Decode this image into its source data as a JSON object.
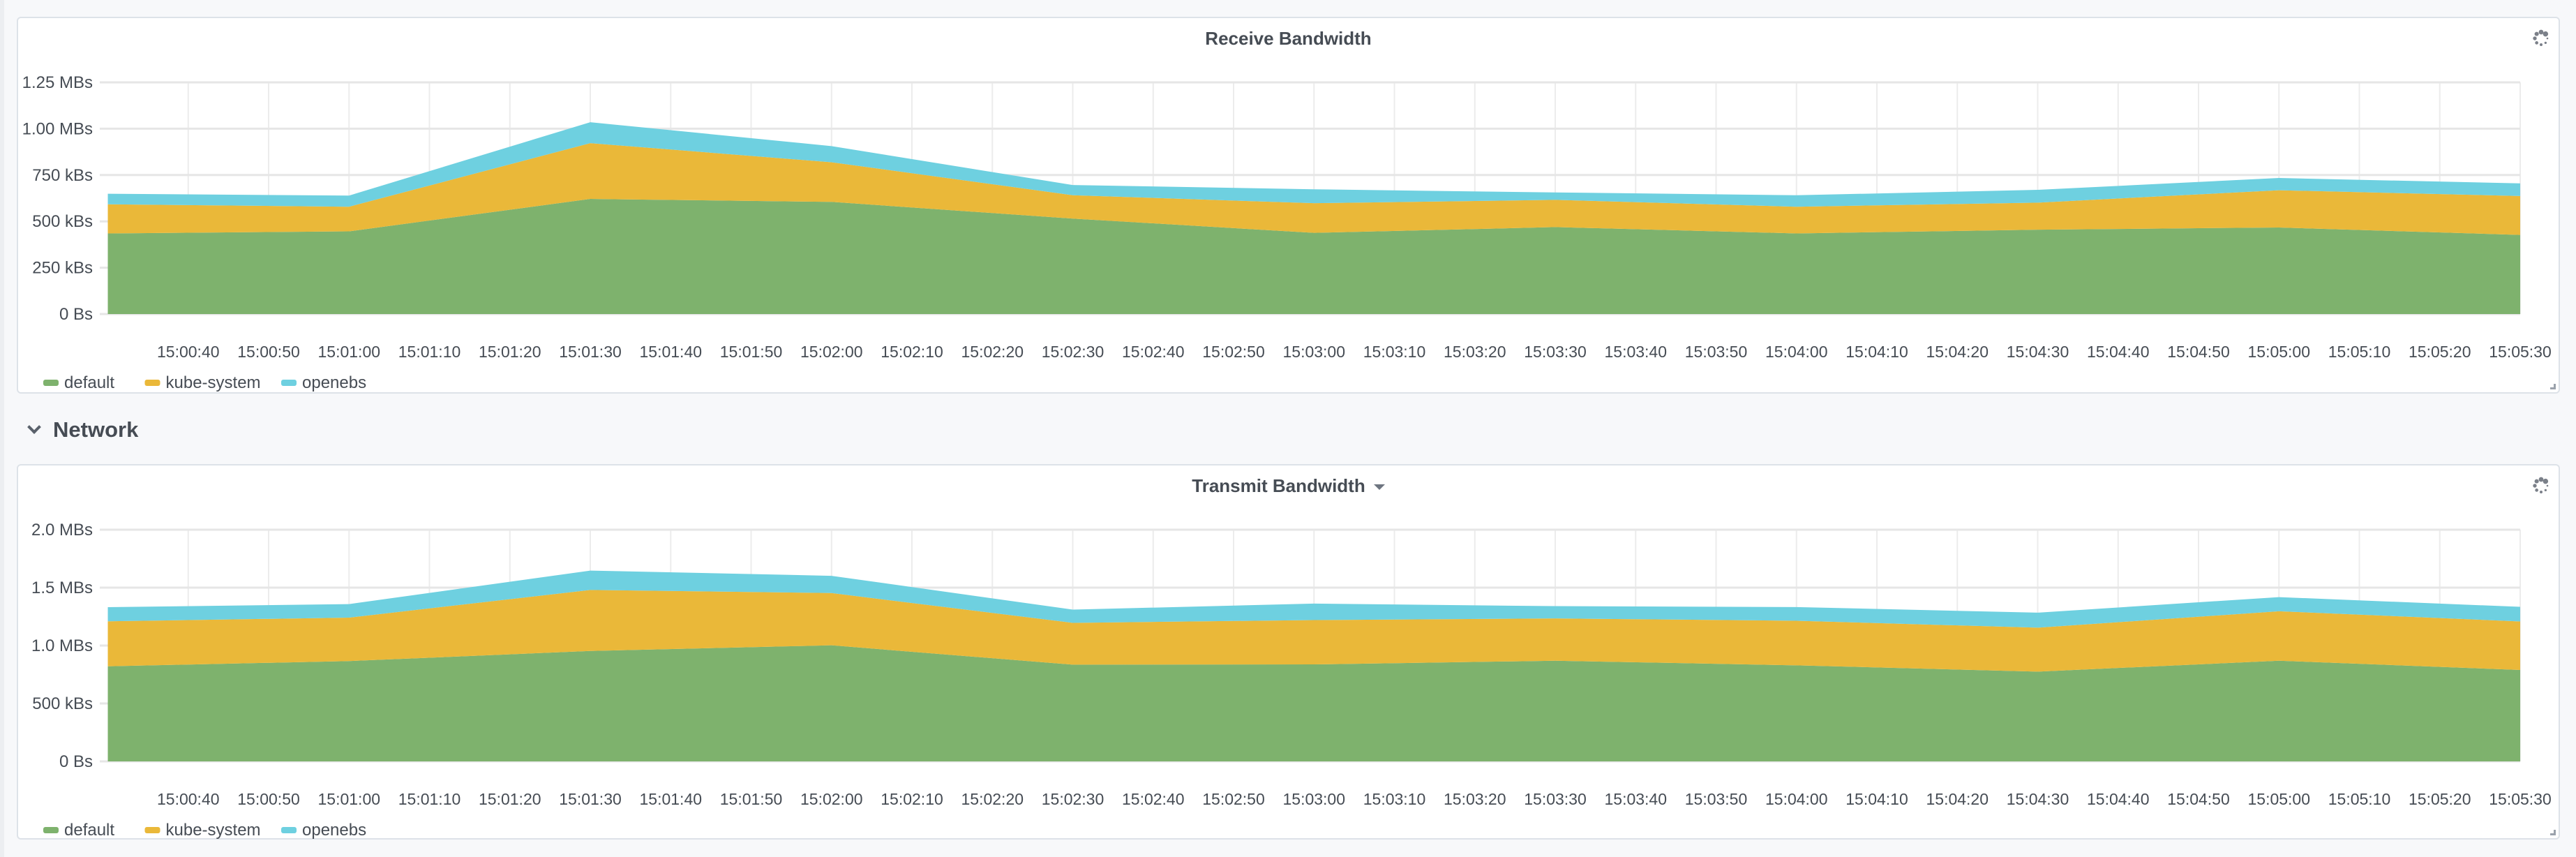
{
  "section": {
    "title": "Network"
  },
  "colors": {
    "default": "#7eb26d",
    "kube-system": "#eab839",
    "openebs": "#6ed0e0",
    "grid": "#e6e6e6",
    "text": "#464c54"
  },
  "chart_data": [
    {
      "type": "area",
      "stacked": true,
      "title": "Receive Bandwidth",
      "unit": "kB/s",
      "xlabel": "",
      "ylabel": "",
      "x": [
        "15:00:30",
        "15:01:00",
        "15:01:30",
        "15:02:00",
        "15:02:30",
        "15:03:00",
        "15:03:30",
        "15:04:00",
        "15:04:30",
        "15:05:00",
        "15:05:30"
      ],
      "xlim": [
        "15:00:29",
        "15:05:30"
      ],
      "xticks": [
        "15:00:40",
        "15:00:50",
        "15:01:00",
        "15:01:10",
        "15:01:20",
        "15:01:30",
        "15:01:40",
        "15:01:50",
        "15:02:00",
        "15:02:10",
        "15:02:20",
        "15:02:30",
        "15:02:40",
        "15:02:50",
        "15:03:00",
        "15:03:10",
        "15:03:20",
        "15:03:30",
        "15:03:40",
        "15:03:50",
        "15:04:00",
        "15:04:10",
        "15:04:20",
        "15:04:30",
        "15:04:40",
        "15:04:50",
        "15:05:00",
        "15:05:10",
        "15:05:20",
        "15:05:30"
      ],
      "yticks": [
        "0 Bs",
        "250 kBs",
        "500 kBs",
        "750 kBs",
        "1.00 MBs",
        "1.25 MBs"
      ],
      "ytick_values": [
        0,
        250,
        500,
        750,
        1000,
        1250
      ],
      "ylim": [
        0,
        1250
      ],
      "grid": true,
      "legend": "bottom-left",
      "series": [
        {
          "name": "default",
          "values": [
            435,
            446,
            621,
            605,
            515,
            438,
            469,
            435,
            455,
            467,
            427
          ]
        },
        {
          "name": "kube-system",
          "values": [
            157,
            133,
            301,
            214,
            126,
            160,
            147,
            144,
            146,
            201,
            210
          ]
        },
        {
          "name": "openebs",
          "values": [
            57,
            60,
            113,
            87,
            55,
            75,
            40,
            62,
            69,
            66,
            68
          ]
        }
      ]
    },
    {
      "type": "area",
      "stacked": true,
      "title": "Transmit Bandwidth",
      "unit": "kB/s",
      "xlabel": "",
      "ylabel": "",
      "x": [
        "15:00:30",
        "15:01:00",
        "15:01:30",
        "15:02:00",
        "15:02:30",
        "15:03:00",
        "15:03:30",
        "15:04:00",
        "15:04:30",
        "15:05:00",
        "15:05:30"
      ],
      "xlim": [
        "15:00:29",
        "15:05:30"
      ],
      "xticks": [
        "15:00:40",
        "15:00:50",
        "15:01:00",
        "15:01:10",
        "15:01:20",
        "15:01:30",
        "15:01:40",
        "15:01:50",
        "15:02:00",
        "15:02:10",
        "15:02:20",
        "15:02:30",
        "15:02:40",
        "15:02:50",
        "15:03:00",
        "15:03:10",
        "15:03:20",
        "15:03:30",
        "15:03:40",
        "15:03:50",
        "15:04:00",
        "15:04:10",
        "15:04:20",
        "15:04:30",
        "15:04:40",
        "15:04:50",
        "15:05:00",
        "15:05:10",
        "15:05:20",
        "15:05:30"
      ],
      "yticks": [
        "0 Bs",
        "500 kBs",
        "1.0 MBs",
        "1.5 MBs",
        "2.0 MBs"
      ],
      "ytick_values": [
        0,
        500,
        1000,
        1500,
        2000
      ],
      "ylim": [
        0,
        2000
      ],
      "grid": true,
      "legend": "bottom-left",
      "series": [
        {
          "name": "default",
          "values": [
            821,
            866,
            953,
            1002,
            835,
            837,
            869,
            829,
            775,
            869,
            789
          ]
        },
        {
          "name": "kube-system",
          "values": [
            388,
            375,
            527,
            451,
            361,
            383,
            365,
            385,
            379,
            427,
            419
          ]
        },
        {
          "name": "openebs",
          "values": [
            122,
            117,
            167,
            149,
            114,
            142,
            106,
            118,
            130,
            122,
            126
          ]
        }
      ]
    }
  ]
}
